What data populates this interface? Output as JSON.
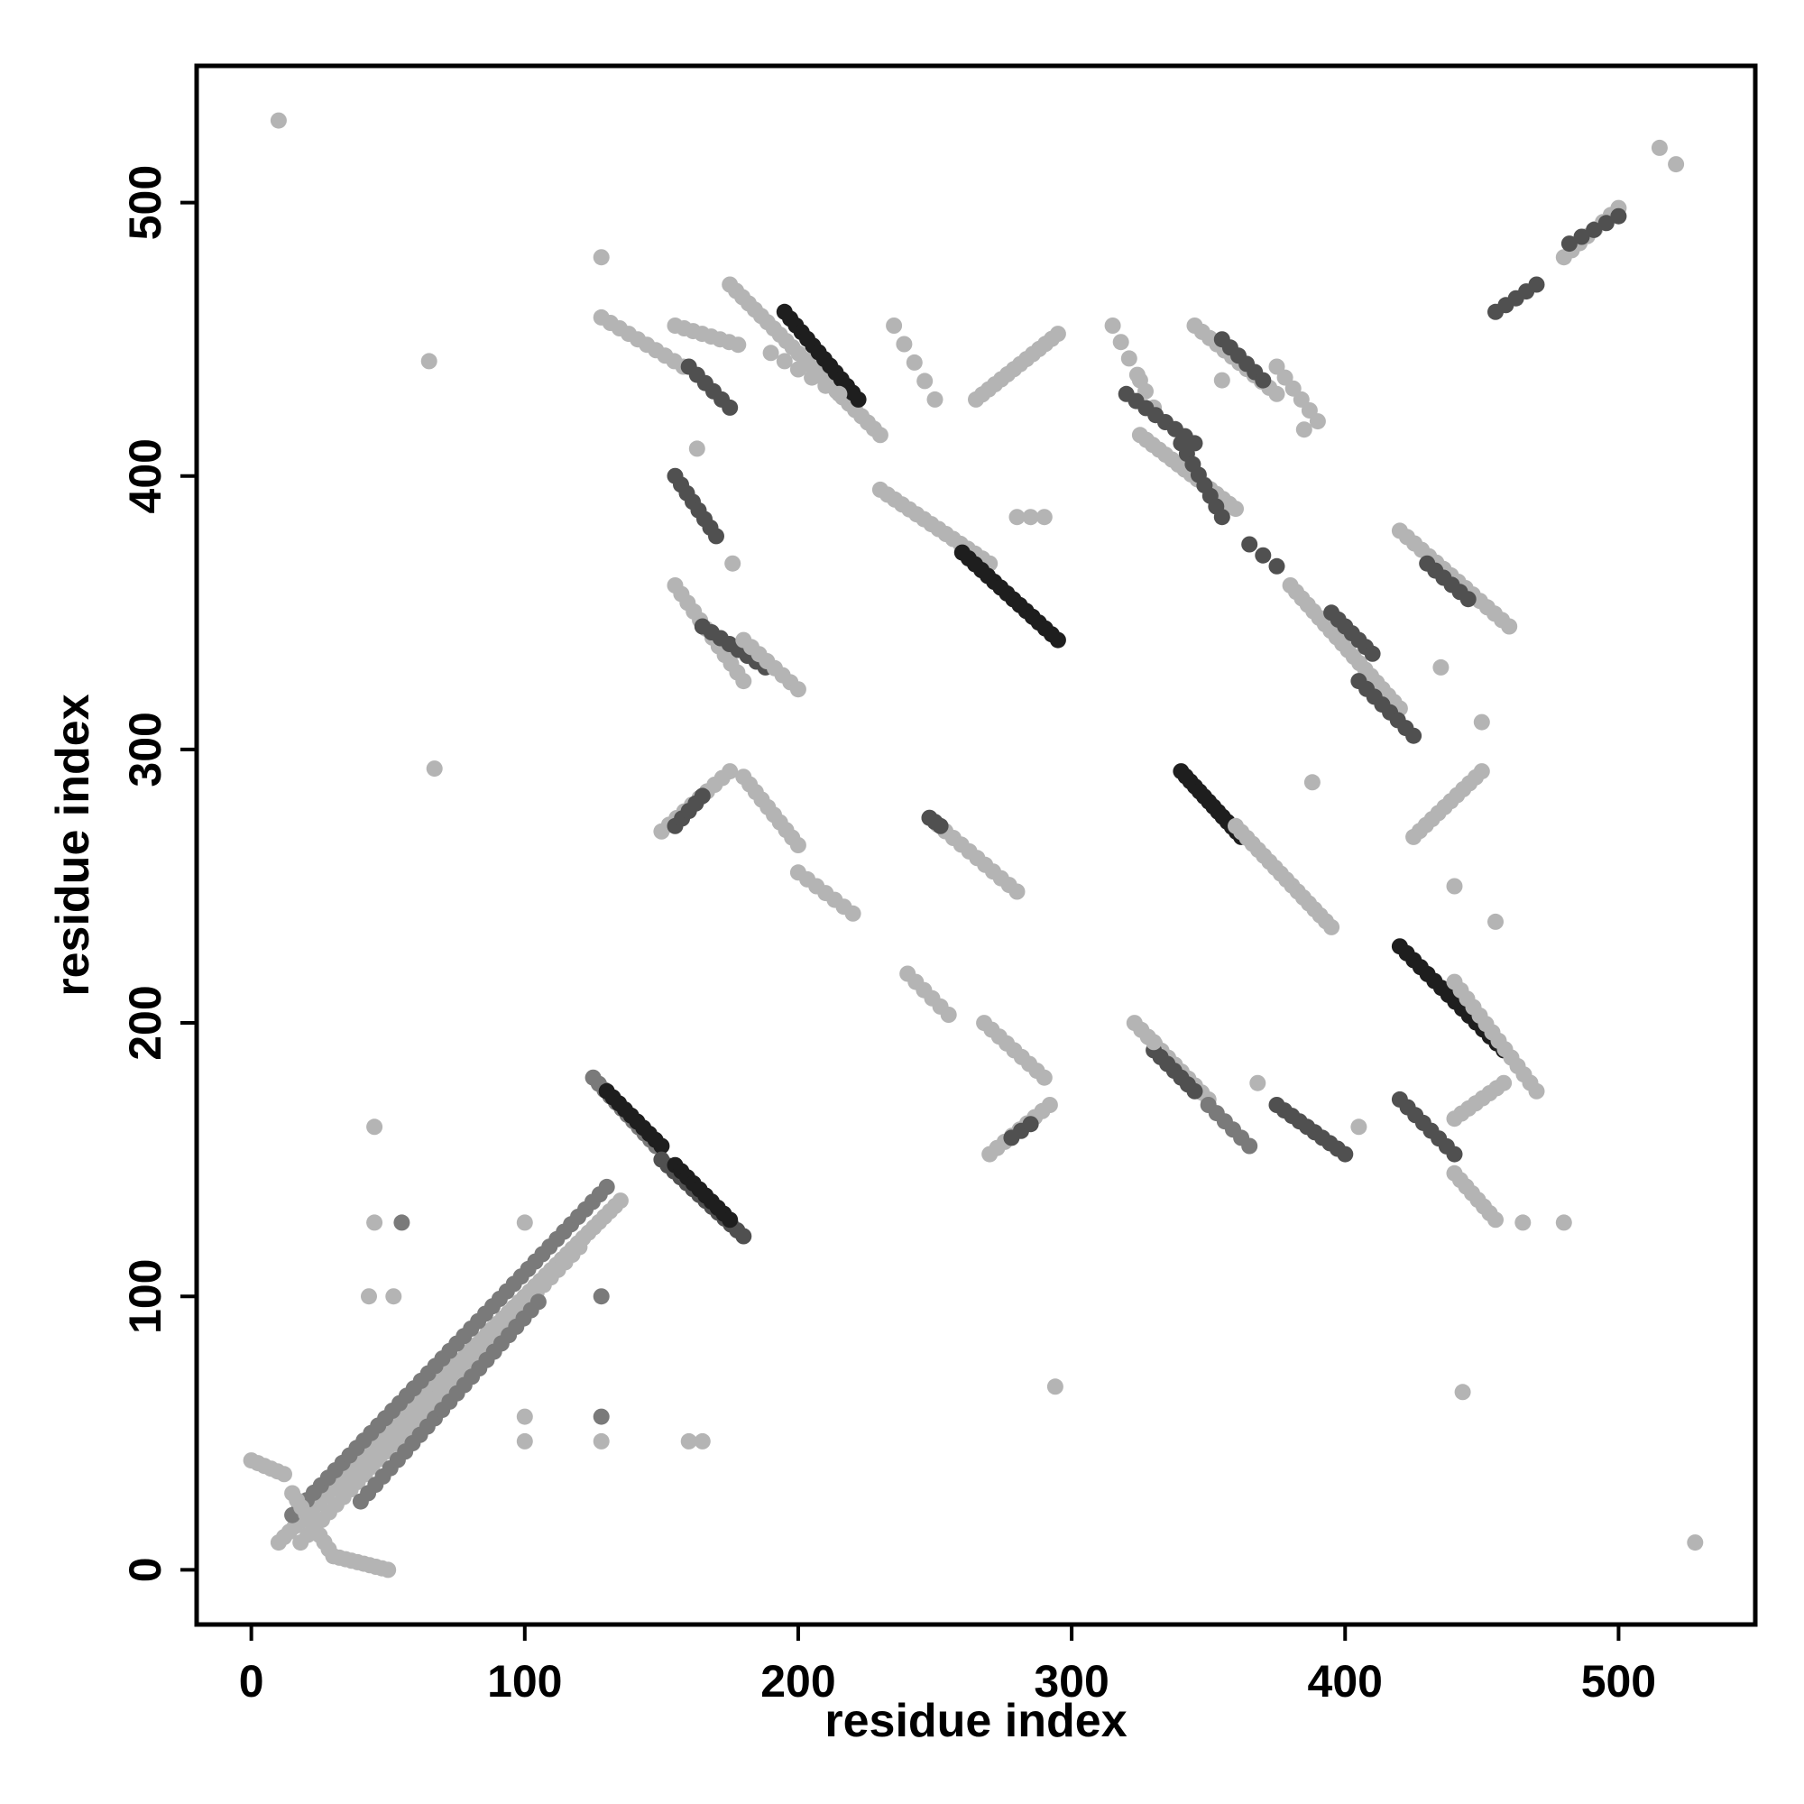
{
  "chart_data": {
    "type": "scatter",
    "title": "",
    "xlabel": "residue index",
    "ylabel": "residue index",
    "xlim": [
      -20,
      550
    ],
    "ylim": [
      -20,
      550
    ],
    "xticks": [
      0,
      100,
      200,
      300,
      400,
      500
    ],
    "yticks": [
      0,
      100,
      200,
      300,
      400,
      500
    ],
    "xtick_labels": [
      "0",
      "100",
      "200",
      "300",
      "400",
      "500"
    ],
    "ytick_labels": [
      "0",
      "100",
      "200",
      "300",
      "400",
      "500"
    ],
    "grid": false,
    "legend": "none",
    "colors": {
      "light": "#b4b4b4",
      "mid": "#7a7a7a",
      "dark": "#505050",
      "darkest": "#1e1e1e"
    },
    "segments": [
      {
        "from": [
          10,
          10
        ],
        "to": [
          135,
          135
        ],
        "count": 65,
        "shade": "light"
      },
      {
        "from": [
          15,
          20
        ],
        "to": [
          130,
          140
        ],
        "count": 45,
        "shade": "mid"
      },
      {
        "from": [
          18,
          10
        ],
        "to": [
          120,
          118
        ],
        "count": 40,
        "shade": "light"
      },
      {
        "from": [
          40,
          25
        ],
        "to": [
          105,
          98
        ],
        "count": 25,
        "shade": "mid"
      },
      {
        "from": [
          0,
          40
        ],
        "to": [
          12,
          35
        ],
        "count": 6,
        "shade": "light"
      },
      {
        "from": [
          15,
          28
        ],
        "to": [
          30,
          5
        ],
        "count": 10,
        "shade": "light"
      },
      {
        "from": [
          30,
          5
        ],
        "to": [
          50,
          0
        ],
        "count": 10,
        "shade": "light"
      },
      {
        "from": [
          125,
          180
        ],
        "to": [
          148,
          155
        ],
        "count": 12,
        "shade": "mid"
      },
      {
        "from": [
          130,
          175
        ],
        "to": [
          150,
          155
        ],
        "count": 10,
        "shade": "darkest"
      },
      {
        "from": [
          150,
          150
        ],
        "to": [
          180,
          122
        ],
        "count": 14,
        "shade": "dark"
      },
      {
        "from": [
          155,
          148
        ],
        "to": [
          175,
          128
        ],
        "count": 10,
        "shade": "darkest"
      },
      {
        "from": [
          128,
          458
        ],
        "to": [
          158,
          440
        ],
        "count": 10,
        "shade": "light"
      },
      {
        "from": [
          155,
          455
        ],
        "to": [
          178,
          448
        ],
        "count": 8,
        "shade": "light"
      },
      {
        "from": [
          160,
          440
        ],
        "to": [
          175,
          425
        ],
        "count": 6,
        "shade": "dark"
      },
      {
        "from": [
          175,
          470
        ],
        "to": [
          230,
          415
        ],
        "count": 25,
        "shade": "light"
      },
      {
        "from": [
          195,
          460
        ],
        "to": [
          222,
          428
        ],
        "count": 14,
        "shade": "darkest"
      },
      {
        "from": [
          190,
          445
        ],
        "to": [
          215,
          430
        ],
        "count": 6,
        "shade": "light"
      },
      {
        "from": [
          155,
          400
        ],
        "to": [
          170,
          378
        ],
        "count": 8,
        "shade": "dark"
      },
      {
        "from": [
          155,
          360
        ],
        "to": [
          180,
          325
        ],
        "count": 12,
        "shade": "light"
      },
      {
        "from": [
          165,
          345
        ],
        "to": [
          188,
          330
        ],
        "count": 8,
        "shade": "dark"
      },
      {
        "from": [
          180,
          340
        ],
        "to": [
          200,
          322
        ],
        "count": 8,
        "shade": "light"
      },
      {
        "from": [
          150,
          270
        ],
        "to": [
          175,
          292
        ],
        "count": 10,
        "shade": "light"
      },
      {
        "from": [
          155,
          272
        ],
        "to": [
          165,
          283
        ],
        "count": 5,
        "shade": "dark"
      },
      {
        "from": [
          180,
          290
        ],
        "to": [
          200,
          265
        ],
        "count": 10,
        "shade": "light"
      },
      {
        "from": [
          200,
          255
        ],
        "to": [
          220,
          240
        ],
        "count": 7,
        "shade": "light"
      },
      {
        "from": [
          230,
          395
        ],
        "to": [
          270,
          368
        ],
        "count": 16,
        "shade": "light"
      },
      {
        "from": [
          260,
          372
        ],
        "to": [
          295,
          340
        ],
        "count": 16,
        "shade": "darkest"
      },
      {
        "from": [
          280,
          385
        ],
        "to": [
          290,
          385
        ],
        "count": 3,
        "shade": "light"
      },
      {
        "from": [
          235,
          455
        ],
        "to": [
          250,
          428
        ],
        "count": 5,
        "shade": "light"
      },
      {
        "from": [
          265,
          428
        ],
        "to": [
          295,
          452
        ],
        "count": 14,
        "shade": "light"
      },
      {
        "from": [
          248,
          275
        ],
        "to": [
          280,
          248
        ],
        "count": 12,
        "shade": "light"
      },
      {
        "from": [
          248,
          275
        ],
        "to": [
          252,
          272
        ],
        "count": 3,
        "shade": "dark"
      },
      {
        "from": [
          240,
          218
        ],
        "to": [
          255,
          203
        ],
        "count": 6,
        "shade": "light"
      },
      {
        "from": [
          268,
          200
        ],
        "to": [
          290,
          180
        ],
        "count": 9,
        "shade": "light"
      },
      {
        "from": [
          270,
          152
        ],
        "to": [
          292,
          170
        ],
        "count": 9,
        "shade": "light"
      },
      {
        "from": [
          278,
          158
        ],
        "to": [
          285,
          163
        ],
        "count": 3,
        "shade": "dark"
      },
      {
        "from": [
          315,
          455
        ],
        "to": [
          330,
          425
        ],
        "count": 6,
        "shade": "light"
      },
      {
        "from": [
          320,
          430
        ],
        "to": [
          345,
          412
        ],
        "count": 8,
        "shade": "dark"
      },
      {
        "from": [
          325,
          415
        ],
        "to": [
          360,
          388
        ],
        "count": 16,
        "shade": "light"
      },
      {
        "from": [
          340,
          412
        ],
        "to": [
          355,
          385
        ],
        "count": 8,
        "shade": "dark"
      },
      {
        "from": [
          345,
          455
        ],
        "to": [
          375,
          430
        ],
        "count": 12,
        "shade": "light"
      },
      {
        "from": [
          355,
          450
        ],
        "to": [
          370,
          435
        ],
        "count": 6,
        "shade": "dark"
      },
      {
        "from": [
          375,
          440
        ],
        "to": [
          390,
          420
        ],
        "count": 6,
        "shade": "light"
      },
      {
        "from": [
          340,
          292
        ],
        "to": [
          362,
          268
        ],
        "count": 14,
        "shade": "darkest"
      },
      {
        "from": [
          360,
          272
        ],
        "to": [
          395,
          235
        ],
        "count": 18,
        "shade": "light"
      },
      {
        "from": [
          380,
          360
        ],
        "to": [
          420,
          315
        ],
        "count": 20,
        "shade": "light"
      },
      {
        "from": [
          395,
          350
        ],
        "to": [
          410,
          335
        ],
        "count": 7,
        "shade": "dark"
      },
      {
        "from": [
          405,
          325
        ],
        "to": [
          425,
          305
        ],
        "count": 8,
        "shade": "dark"
      },
      {
        "from": [
          365,
          375
        ],
        "to": [
          375,
          367
        ],
        "count": 3,
        "shade": "dark"
      },
      {
        "from": [
          420,
          380
        ],
        "to": [
          460,
          345
        ],
        "count": 16,
        "shade": "light"
      },
      {
        "from": [
          430,
          368
        ],
        "to": [
          445,
          355
        ],
        "count": 6,
        "shade": "dark"
      },
      {
        "from": [
          323,
          200
        ],
        "to": [
          350,
          172
        ],
        "count": 12,
        "shade": "light"
      },
      {
        "from": [
          330,
          190
        ],
        "to": [
          345,
          175
        ],
        "count": 7,
        "shade": "dark"
      },
      {
        "from": [
          350,
          170
        ],
        "to": [
          365,
          155
        ],
        "count": 6,
        "shade": "mid"
      },
      {
        "from": [
          375,
          170
        ],
        "to": [
          400,
          152
        ],
        "count": 10,
        "shade": "dark"
      },
      {
        "from": [
          420,
          228
        ],
        "to": [
          458,
          190
        ],
        "count": 16,
        "shade": "darkest"
      },
      {
        "from": [
          440,
          215
        ],
        "to": [
          470,
          175
        ],
        "count": 14,
        "shade": "light"
      },
      {
        "from": [
          425,
          268
        ],
        "to": [
          450,
          292
        ],
        "count": 12,
        "shade": "light"
      },
      {
        "from": [
          420,
          172
        ],
        "to": [
          440,
          152
        ],
        "count": 8,
        "shade": "dark"
      },
      {
        "from": [
          440,
          165
        ],
        "to": [
          458,
          178
        ],
        "count": 8,
        "shade": "light"
      },
      {
        "from": [
          440,
          145
        ],
        "to": [
          455,
          128
        ],
        "count": 8,
        "shade": "light"
      },
      {
        "from": [
          455,
          460
        ],
        "to": [
          470,
          470
        ],
        "count": 5,
        "shade": "dark"
      },
      {
        "from": [
          480,
          480
        ],
        "to": [
          500,
          498
        ],
        "count": 8,
        "shade": "light"
      },
      {
        "from": [
          482,
          485
        ],
        "to": [
          500,
          495
        ],
        "count": 5,
        "shade": "dark"
      }
    ],
    "isolated_points": [
      {
        "x": 10,
        "y": 530,
        "shade": "light"
      },
      {
        "x": 128,
        "y": 480,
        "shade": "light"
      },
      {
        "x": 65,
        "y": 442,
        "shade": "light"
      },
      {
        "x": 67,
        "y": 293,
        "shade": "light"
      },
      {
        "x": 163,
        "y": 410,
        "shade": "light"
      },
      {
        "x": 176,
        "y": 368,
        "shade": "light"
      },
      {
        "x": 294,
        "y": 67,
        "shade": "light"
      },
      {
        "x": 443,
        "y": 65,
        "shade": "light"
      },
      {
        "x": 528,
        "y": 10,
        "shade": "light"
      },
      {
        "x": 515,
        "y": 520,
        "shade": "light"
      },
      {
        "x": 521,
        "y": 514,
        "shade": "light"
      },
      {
        "x": 480,
        "y": 127,
        "shade": "light"
      },
      {
        "x": 465,
        "y": 127,
        "shade": "light"
      },
      {
        "x": 368,
        "y": 178,
        "shade": "light"
      },
      {
        "x": 405,
        "y": 162,
        "shade": "light"
      },
      {
        "x": 330,
        "y": 193,
        "shade": "light"
      },
      {
        "x": 435,
        "y": 330,
        "shade": "light"
      },
      {
        "x": 388,
        "y": 288,
        "shade": "light"
      },
      {
        "x": 45,
        "y": 162,
        "shade": "light"
      },
      {
        "x": 45,
        "y": 127,
        "shade": "light"
      },
      {
        "x": 55,
        "y": 127,
        "shade": "mid"
      },
      {
        "x": 100,
        "y": 127,
        "shade": "light"
      },
      {
        "x": 52,
        "y": 100,
        "shade": "light"
      },
      {
        "x": 43,
        "y": 100,
        "shade": "light"
      },
      {
        "x": 128,
        "y": 100,
        "shade": "mid"
      },
      {
        "x": 128,
        "y": 47,
        "shade": "light"
      },
      {
        "x": 128,
        "y": 56,
        "shade": "mid"
      },
      {
        "x": 100,
        "y": 47,
        "shade": "light"
      },
      {
        "x": 100,
        "y": 56,
        "shade": "light"
      },
      {
        "x": 160,
        "y": 47,
        "shade": "light"
      },
      {
        "x": 165,
        "y": 47,
        "shade": "light"
      },
      {
        "x": 325,
        "y": 435,
        "shade": "light"
      },
      {
        "x": 385,
        "y": 417,
        "shade": "light"
      },
      {
        "x": 355,
        "y": 435,
        "shade": "light"
      },
      {
        "x": 455,
        "y": 237,
        "shade": "light"
      },
      {
        "x": 440,
        "y": 250,
        "shade": "light"
      },
      {
        "x": 450,
        "y": 310,
        "shade": "light"
      }
    ]
  }
}
